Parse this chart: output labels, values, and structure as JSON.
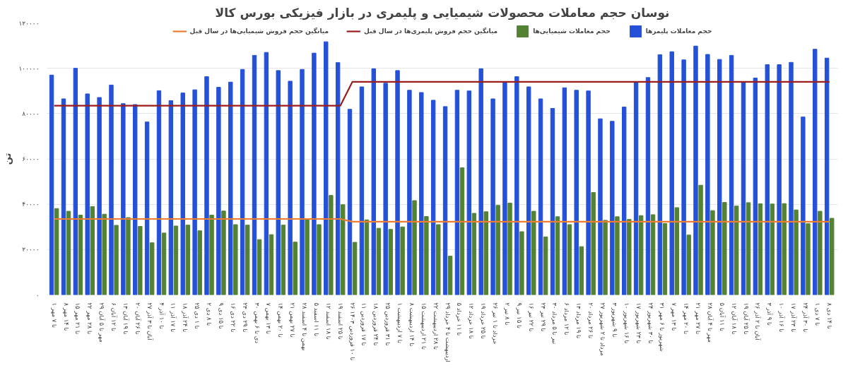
{
  "chart_data": {
    "type": "bar",
    "title": "نوسان حجم معاملات محصولات شیمیایی و پلیمری در بازار فیزیکی بورس کالا",
    "ylabel": "تن",
    "categories": [
      "۱ تا ۷ مهر",
      "۸ تا ۱۴ مهر",
      "۱۵ تا ۲۱ مهر",
      "۲۲ تا ۲۸ مهر",
      "۲۹ مهر تا ۵ آبان",
      "۶ تا ۱۲ آبان",
      "۱۳ تا ۱۹ آبان",
      "۲۰ تا ۲۶ آبان",
      "۲۷ آبان تا ۳ آذر",
      "۴ تا ۱۰ آذر",
      "۱۱ تا ۱۷ آذر",
      "۱۸ تا ۲۴ آذر",
      "۲۵ تا ۱ دی",
      "۲ تا ۸ دی",
      "۹ تا ۱۵ دی",
      "۱۶ تا ۲۲ دی",
      "۲۳ تا ۲۹ دی",
      "۳۰ دی تا ۶ بهمن",
      "۷ تا ۱۳ بهمن",
      "۱۴ تا ۲۰ بهمن",
      "۲۱ تا ۲۷ بهمن",
      "۲۸ بهمن تا ۴ اسفند",
      "۵ تا ۱۱ اسفند",
      "۱۲ تا ۱۸ اسفند",
      "۱۹ تا ۲۵ اسفند",
      "۲۶ تا ۱۰ فروردین ۱۴۰۳",
      "۱۱ تا ۱۷ فروردین",
      "۱۸ تا ۲۴ فروردین",
      "۲۵ تا ۳۱ فروردین",
      "۱ تا ۷ اردیبهشت",
      "۸ تا ۱۴ اردیبهشت",
      "۱۵ تا ۲۱ اردیبهشت",
      "۲۲ تا ۲۸ اردیبهشت",
      "۲۹ اردیبهشت تا ۴ خرداد",
      "۵ تا ۱۱ خرداد",
      "۱۲ تا ۱۸ خرداد",
      "۱۹ تا ۲۵ خرداد",
      "۲۶ خرداد تا ۱ تیر",
      "۲ تا ۸ تیر",
      "۹ تا ۱۵ تیر",
      "۱۶ تا ۲۲ تیر",
      "۲۳ تا ۲۹ تیر",
      "۳۰ تیر تا ۵ مرداد",
      "۶ تا ۱۲ مرداد",
      "۱۳ تا ۱۹ مرداد",
      "۲۰ تا ۲۶ مرداد",
      "۲۷ مرداد تا ۲ شهریور",
      "۳ تا ۹ شهریور",
      "۱۰ تا ۱۶ شهریور",
      "۱۷ تا ۲۳ شهریور",
      "۲۴ تا ۳۰ شهریور",
      "۳۱ شهریور تا ۶ مهر",
      "۷ تا ۱۳ مهر",
      "۱۴ تا ۲۰ مهر",
      "۲۱ تا ۲۷ مهر",
      "۲۸ مهر تا ۴ آبان",
      "۵ تا ۱۱ آبان",
      "۱۲ تا ۱۸ آبان",
      "۱۹ تا ۲۵ آبان",
      "۲۶ آبان تا ۲ آذر",
      "۳ تا ۹ آذر",
      "۱۰ تا ۱۶ آذر",
      "۱۷ تا ۲۳ آذر",
      "۲۴ تا ۳۰ آذر",
      "۱ تا ۷ دی",
      "۸ تا ۱۴ دی"
    ],
    "series": [
      {
        "name": "حجم معاملات پلیمرها",
        "color": "#2451d8",
        "values": [
          97000,
          86500,
          100000,
          88700,
          87100,
          92600,
          84400,
          84000,
          76300,
          90100,
          85700,
          89100,
          90500,
          96300,
          91600,
          93900,
          99500,
          105700,
          107000,
          99000,
          94300,
          99500,
          106700,
          111700,
          102500,
          81900,
          91800,
          99800,
          93400,
          99000,
          90300,
          89300,
          85900,
          83100,
          90300,
          90000,
          99800,
          86500,
          94100,
          96300,
          91800,
          86500,
          82300,
          91400,
          90300,
          90000,
          77700,
          76600,
          82900,
          93700,
          95900,
          106000,
          107300,
          103700,
          109800,
          106100,
          103900,
          105700,
          93700,
          95700,
          101600,
          101600,
          102600,
          78500,
          108400,
          104500
        ]
      },
      {
        "name": "حجم معاملات شیمیایی‌ها",
        "color": "#548235",
        "values": [
          38100,
          36900,
          35200,
          39000,
          35600,
          30700,
          34100,
          30200,
          23000,
          27300,
          30400,
          30800,
          28300,
          35200,
          37000,
          31000,
          30800,
          24400,
          26600,
          30800,
          23300,
          33500,
          31000,
          43900,
          39800,
          23200,
          33100,
          29400,
          28900,
          30000,
          41600,
          34600,
          31000,
          17100,
          56100,
          36000,
          36700,
          39500,
          40500,
          27900,
          36900,
          25600,
          34500,
          31000,
          21300,
          45200,
          32900,
          34500,
          33300,
          35000,
          35400,
          31500,
          38500,
          26400,
          48400,
          37200,
          40800,
          39200,
          40700,
          40200,
          40100,
          40300,
          37500,
          31400,
          36900,
          33800
        ]
      },
      {
        "name": "میانگین حجم فروش پلیمری‌ها در سال قبل",
        "type": "line",
        "color": "#9b1c1c",
        "values": [
          83500,
          83500,
          83500,
          83500,
          83500,
          83500,
          83500,
          83500,
          83500,
          83500,
          83500,
          83500,
          83500,
          83500,
          83500,
          83500,
          83500,
          83500,
          83500,
          83500,
          83500,
          83500,
          83500,
          83500,
          83500,
          94000,
          94000,
          94000,
          94000,
          94000,
          94000,
          94000,
          94000,
          94000,
          94000,
          94000,
          94000,
          94000,
          94000,
          94000,
          94000,
          94000,
          94000,
          94000,
          94000,
          94000,
          94000,
          94000,
          94000,
          94000,
          94000,
          94000,
          94000,
          94000,
          94000,
          94000,
          94000,
          94000,
          94000,
          94000,
          94000,
          94000,
          94000,
          94000,
          94000,
          94000
        ]
      },
      {
        "name": "میانگین حجم فروش شیمیایی‌ها در سال قبل",
        "type": "line",
        "color": "#ed7d31",
        "values": [
          33500,
          33500,
          33500,
          33500,
          33500,
          33500,
          33500,
          33500,
          33500,
          33500,
          33500,
          33500,
          33500,
          33500,
          33500,
          33500,
          33500,
          33500,
          33500,
          33500,
          33500,
          33500,
          33500,
          33500,
          33500,
          32300,
          32300,
          32300,
          32300,
          32300,
          32300,
          32300,
          32300,
          32300,
          32300,
          32300,
          32300,
          32300,
          32300,
          32300,
          32300,
          32300,
          32300,
          32300,
          32300,
          32300,
          32300,
          32300,
          32300,
          32300,
          32300,
          32300,
          32300,
          32300,
          32300,
          32300,
          32300,
          32300,
          32300,
          32300,
          32300,
          32300,
          32300,
          32300,
          32300,
          32300
        ]
      }
    ],
    "ylim": [
      0,
      120000
    ],
    "yticks": [
      {
        "value": 0,
        "label": "۰"
      },
      {
        "value": 20000,
        "label": "۲۰۰۰۰"
      },
      {
        "value": 40000,
        "label": "۴۰۰۰۰"
      },
      {
        "value": 60000,
        "label": "۶۰۰۰۰"
      },
      {
        "value": 80000,
        "label": "۸۰۰۰۰"
      },
      {
        "value": 100000,
        "label": "۱۰۰۰۰۰"
      },
      {
        "value": 120000,
        "label": "۱۲۰۰۰۰"
      }
    ],
    "grid": "y",
    "legend": "top"
  }
}
